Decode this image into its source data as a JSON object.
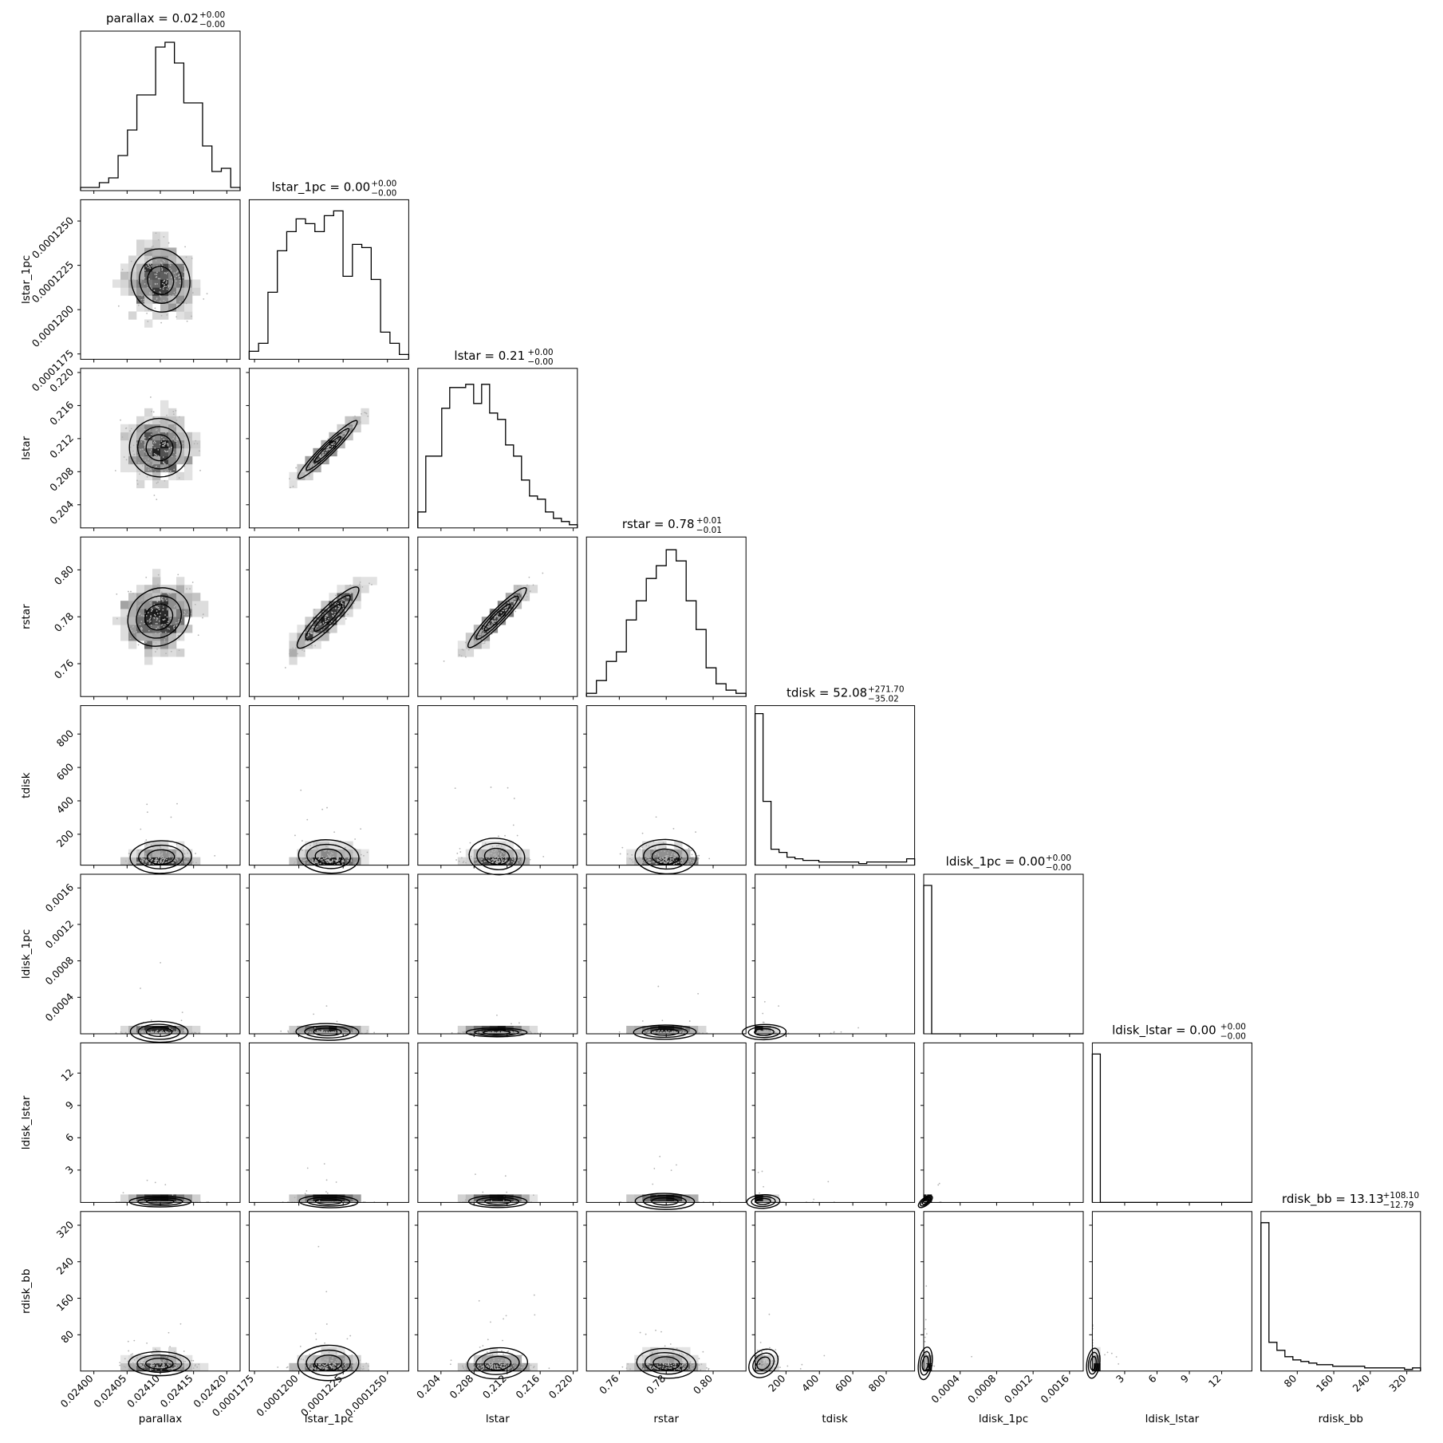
{
  "chart_data": {
    "type": "corner",
    "parameters": [
      {
        "name": "parallax",
        "label": "parallax",
        "range": [
          0.02398,
          0.02422
        ],
        "ticks": [
          0.024,
          0.02405,
          0.0241,
          0.02415,
          0.0242
        ],
        "tick_labels": [
          "0.02400",
          "0.02405",
          "0.02410",
          "0.02415",
          "0.02420"
        ],
        "title_main": "parallax = 0.02",
        "title_sup": "+0.00",
        "title_sub": "−0.00",
        "median": 0.0241,
        "hist": [
          0.02,
          0.02,
          0.05,
          0.08,
          0.22,
          0.38,
          0.6,
          0.6,
          0.9,
          0.93,
          0.8,
          0.55,
          0.55,
          0.28,
          0.12,
          0.14,
          0.02
        ]
      },
      {
        "name": "lstar_1pc",
        "label": "lstar_1pc",
        "range": [
          0.0001172,
          0.0001262
        ],
        "ticks": [
          0.0001175,
          0.00012,
          0.0001225,
          0.000125
        ],
        "tick_labels": [
          "0.0001175",
          "0.0001200",
          "0.0001225",
          "0.0001250"
        ],
        "title_main": "lstar_1pc = 0.00",
        "title_sup": "+0.00",
        "title_sub": "−0.00",
        "median": 0.0001213,
        "hist": [
          0.05,
          0.1,
          0.42,
          0.68,
          0.8,
          0.88,
          0.85,
          0.8,
          0.9,
          0.93,
          0.52,
          0.72,
          0.7,
          0.5,
          0.17,
          0.1,
          0.03
        ]
      },
      {
        "name": "lstar",
        "label": "lstar",
        "range": [
          0.2012,
          0.2205
        ],
        "ticks": [
          0.204,
          0.208,
          0.212,
          0.216,
          0.22
        ],
        "tick_labels": [
          "0.204",
          "0.208",
          "0.212",
          "0.216",
          "0.220"
        ],
        "title_main": "lstar = 0.21",
        "title_sup": "+0.00",
        "title_sub": "−0.00",
        "median": 0.2088,
        "hist": [
          0.1,
          0.45,
          0.45,
          0.75,
          0.88,
          0.88,
          0.9,
          0.78,
          0.9,
          0.72,
          0.68,
          0.52,
          0.45,
          0.3,
          0.2,
          0.18,
          0.1,
          0.06,
          0.04,
          0.02
        ]
      },
      {
        "name": "rstar",
        "label": "rstar",
        "range": [
          0.746,
          0.814
        ],
        "ticks": [
          0.76,
          0.78,
          0.8
        ],
        "tick_labels": [
          "0.76",
          "0.78",
          "0.80"
        ],
        "title_main": "rstar = 0.78",
        "title_sup": "+0.01",
        "title_sub": "−0.01",
        "median": 0.778,
        "hist": [
          0.02,
          0.1,
          0.22,
          0.28,
          0.48,
          0.6,
          0.74,
          0.82,
          0.92,
          0.85,
          0.6,
          0.42,
          0.18,
          0.08,
          0.04,
          0.02
        ]
      },
      {
        "name": "tdisk",
        "label": "tdisk",
        "range": [
          15,
          970
        ],
        "ticks": [
          200,
          400,
          600,
          800
        ],
        "tick_labels": [
          "200",
          "400",
          "600",
          "800"
        ],
        "title_main": "tdisk = 52.08",
        "title_sup": "+271.70",
        "title_sub": "−35.02",
        "median": 52.08,
        "hist": [
          0.95,
          0.4,
          0.1,
          0.08,
          0.05,
          0.04,
          0.03,
          0.03,
          0.02,
          0.02,
          0.02,
          0.02,
          0.02,
          0.01,
          0.02,
          0.02,
          0.02,
          0.02,
          0.02,
          0.04
        ]
      },
      {
        "name": "ldisk_1pc",
        "label": "ldisk_1pc",
        "range": [
          0.0,
          0.00175
        ],
        "ticks": [
          0.0004,
          0.0008,
          0.0012,
          0.0016
        ],
        "tick_labels": [
          "0.0004",
          "0.0008",
          "0.0012",
          "0.0016"
        ],
        "title_main": "ldisk_1pc = 0.00",
        "title_sup": "+0.00",
        "title_sub": "−0.00",
        "median": 1e-05,
        "hist": [
          0.93,
          0,
          0,
          0,
          0,
          0,
          0,
          0,
          0,
          0,
          0,
          0,
          0,
          0,
          0,
          0,
          0,
          0,
          0,
          0
        ]
      },
      {
        "name": "ldisk_lstar",
        "label": "ldisk_lstar",
        "range": [
          0.0,
          14.8
        ],
        "ticks": [
          3,
          6,
          9,
          12
        ],
        "tick_labels": [
          "3",
          "6",
          "9",
          "12"
        ],
        "title_main": "ldisk_lstar = 0.00",
        "title_sup": "+0.00",
        "title_sub": "−0.00",
        "median": 0.0,
        "hist": [
          0.93,
          0,
          0,
          0,
          0,
          0,
          0,
          0,
          0,
          0,
          0,
          0,
          0,
          0,
          0,
          0,
          0,
          0,
          0,
          0
        ]
      },
      {
        "name": "rdisk_bb",
        "label": "rdisk_bb",
        "range": [
          0.5,
          350
        ],
        "ticks": [
          80,
          160,
          240,
          320
        ],
        "tick_labels": [
          "80",
          "160",
          "240",
          "320"
        ],
        "title_main": "rdisk_bb = 13.13",
        "title_sup": "+108.10",
        "title_sub": "−12.79",
        "median": 13.13,
        "hist": [
          0.93,
          0.18,
          0.13,
          0.09,
          0.07,
          0.06,
          0.05,
          0.04,
          0.04,
          0.03,
          0.03,
          0.03,
          0.03,
          0.02,
          0.02,
          0.02,
          0.02,
          0.02,
          0.01,
          0.02
        ]
      }
    ],
    "correlations": [
      [
        1,
        0.05,
        0.05,
        0.1,
        0,
        0,
        0,
        0
      ],
      [
        0.05,
        1,
        0.96,
        0.9,
        0,
        0,
        0,
        0
      ],
      [
        0.05,
        0.96,
        1,
        0.94,
        0,
        0,
        0,
        0
      ],
      [
        0.1,
        0.9,
        0.94,
        1,
        0,
        0,
        0,
        0
      ],
      [
        0,
        0,
        0,
        0,
        1,
        0.3,
        0.3,
        0.3
      ],
      [
        0,
        0,
        0,
        0,
        0.3,
        1,
        0.9,
        0.6
      ],
      [
        0,
        0,
        0,
        0,
        0.3,
        0.9,
        1,
        0.6
      ],
      [
        0,
        0,
        0,
        0,
        0.3,
        0.6,
        0.6,
        1
      ]
    ],
    "skewed": [
      false,
      false,
      false,
      false,
      true,
      true,
      true,
      true
    ],
    "grid": false,
    "colors": {
      "axis": "#000000",
      "density_dark": "#000000",
      "points": "#b3b3b3",
      "background": "#ffffff"
    }
  }
}
